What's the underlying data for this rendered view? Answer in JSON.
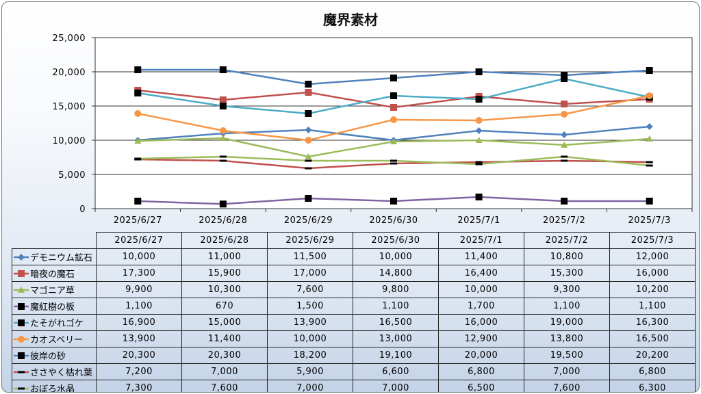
{
  "chart_data": {
    "type": "line",
    "title": "魔界素材",
    "categories": [
      "2025/6/27",
      "2025/6/28",
      "2025/6/29",
      "2025/6/30",
      "2025/7/1",
      "2025/7/2",
      "2025/7/3"
    ],
    "ylim": [
      0,
      25000
    ],
    "yticks": [
      "0",
      "5,000",
      "10,000",
      "15,000",
      "20,000",
      "25,000"
    ],
    "grid": true,
    "legend": "data-table",
    "series": [
      {
        "name": "デモニウム鉱石",
        "values": [
          10000,
          11000,
          11500,
          10000,
          11400,
          10800,
          12000
        ],
        "labels": [
          "10,000",
          "11,000",
          "11,500",
          "10,000",
          "11,400",
          "10,800",
          "12,000"
        ],
        "color": "#4f81bd",
        "marker": "diamond"
      },
      {
        "name": "暗夜の魔石",
        "values": [
          17300,
          15900,
          17000,
          14800,
          16400,
          15300,
          16000
        ],
        "labels": [
          "17,300",
          "15,900",
          "17,000",
          "14,800",
          "16,400",
          "15,300",
          "16,000"
        ],
        "color": "#c0504d",
        "marker": "square"
      },
      {
        "name": "マゴニア草",
        "values": [
          9900,
          10300,
          7600,
          9800,
          10000,
          9300,
          10200
        ],
        "labels": [
          "9,900",
          "10,300",
          "7,600",
          "9,800",
          "10,000",
          "9,300",
          "10,200"
        ],
        "color": "#9bbb59",
        "marker": "triangle"
      },
      {
        "name": "魔紅樹の板",
        "values": [
          1100,
          670,
          1500,
          1100,
          1700,
          1100,
          1100
        ],
        "labels": [
          "1,100",
          "670",
          "1,500",
          "1,100",
          "1,700",
          "1,100",
          "1,100"
        ],
        "color": "#8064a2",
        "marker": "square-black"
      },
      {
        "name": "たそがれゴケ",
        "values": [
          16900,
          15000,
          13900,
          16500,
          16000,
          19000,
          16300
        ],
        "labels": [
          "16,900",
          "15,000",
          "13,900",
          "16,500",
          "16,000",
          "19,000",
          "16,300"
        ],
        "color": "#4bacc6",
        "marker": "square-black"
      },
      {
        "name": "カオスベリー",
        "values": [
          13900,
          11400,
          10000,
          13000,
          12900,
          13800,
          16500
        ],
        "labels": [
          "13,900",
          "11,400",
          "10,000",
          "13,000",
          "12,900",
          "13,800",
          "16,500"
        ],
        "color": "#f79646",
        "marker": "circle"
      },
      {
        "name": "彼岸の砂",
        "values": [
          20300,
          20300,
          18200,
          19100,
          20000,
          19500,
          20200
        ],
        "labels": [
          "20,300",
          "20,300",
          "18,200",
          "19,100",
          "20,000",
          "19,500",
          "20,200"
        ],
        "color": "#4f81bd",
        "marker": "square-black"
      },
      {
        "name": "ささやく枯れ葉",
        "values": [
          7200,
          7000,
          5900,
          6600,
          6800,
          7000,
          6800
        ],
        "labels": [
          "7,200",
          "7,000",
          "5,900",
          "6,600",
          "6,800",
          "7,000",
          "6,800"
        ],
        "color": "#c0504d",
        "marker": "dash"
      },
      {
        "name": "おぼろ水晶",
        "values": [
          7300,
          7600,
          7000,
          7000,
          6500,
          7600,
          6300
        ],
        "labels": [
          "7,300",
          "7,600",
          "7,000",
          "7,000",
          "6,500",
          "7,600",
          "6,300"
        ],
        "color": "#9bbb59",
        "marker": "dash"
      }
    ]
  }
}
